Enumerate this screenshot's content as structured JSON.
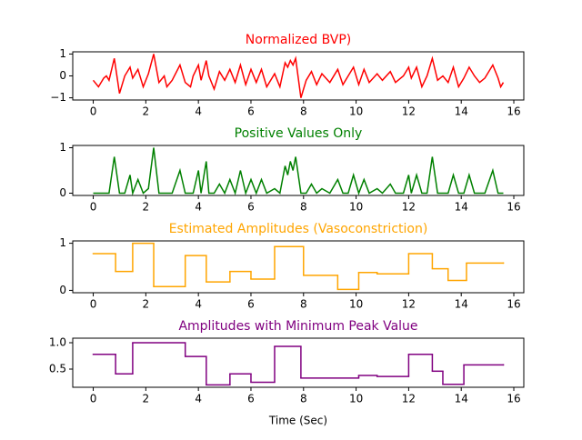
{
  "chart_data": [
    {
      "type": "line",
      "title": "Normalized BVP)",
      "color": "#ff0000",
      "x": [
        0,
        0.2,
        0.4,
        0.5,
        0.6,
        0.8,
        1.0,
        1.2,
        1.4,
        1.5,
        1.7,
        1.9,
        2.1,
        2.3,
        2.5,
        2.7,
        2.8,
        3.0,
        3.3,
        3.5,
        3.7,
        3.8,
        4.0,
        4.1,
        4.3,
        4.4,
        4.6,
        4.8,
        5.0,
        5.2,
        5.4,
        5.6,
        5.8,
        6.0,
        6.2,
        6.4,
        6.6,
        6.9,
        7.1,
        7.3,
        7.4,
        7.5,
        7.6,
        7.7,
        7.9,
        8.1,
        8.3,
        8.5,
        8.7,
        9.0,
        9.3,
        9.5,
        9.7,
        9.9,
        10.1,
        10.3,
        10.5,
        10.8,
        11.0,
        11.3,
        11.5,
        11.8,
        12.0,
        12.1,
        12.3,
        12.5,
        12.7,
        12.9,
        13.1,
        13.3,
        13.5,
        13.7,
        13.9,
        14.1,
        14.3,
        14.5,
        14.7,
        14.9,
        15.2,
        15.4,
        15.5,
        15.6
      ],
      "values": [
        -0.2,
        -0.5,
        -0.1,
        0.0,
        -0.2,
        0.8,
        -0.8,
        0.0,
        0.4,
        -0.1,
        0.3,
        -0.5,
        0.1,
        1.0,
        -0.3,
        0.0,
        -0.5,
        -0.2,
        0.5,
        -0.3,
        -0.5,
        0.0,
        0.5,
        -0.2,
        0.7,
        0.0,
        -0.6,
        0.2,
        -0.2,
        0.3,
        -0.3,
        0.5,
        -0.4,
        0.3,
        -0.3,
        0.3,
        -0.5,
        0.1,
        -0.5,
        0.6,
        0.4,
        0.7,
        0.5,
        0.8,
        -1.0,
        -0.2,
        0.2,
        -0.4,
        0.1,
        -0.3,
        0.3,
        -0.4,
        0.0,
        0.4,
        -0.4,
        0.3,
        -0.3,
        0.1,
        -0.2,
        0.2,
        -0.3,
        0.0,
        0.4,
        -0.1,
        0.4,
        -0.5,
        0.0,
        0.8,
        -0.2,
        0.0,
        -0.3,
        0.4,
        -0.5,
        -0.1,
        0.4,
        0.0,
        -0.3,
        -0.1,
        0.5,
        -0.1,
        -0.5,
        -0.3
      ],
      "xlim": [
        -0.78,
        16.38
      ],
      "xticks": [
        0,
        2,
        4,
        6,
        8,
        10,
        12,
        14,
        16
      ],
      "ylim": [
        -1.1,
        1.1
      ],
      "yticks": [
        {
          "value": -1,
          "label": "−1"
        },
        0,
        1
      ]
    },
    {
      "type": "line",
      "title": "Positive Values Only",
      "color": "#008000",
      "x": [
        0,
        0.2,
        0.4,
        0.5,
        0.6,
        0.8,
        1.0,
        1.2,
        1.4,
        1.5,
        1.7,
        1.9,
        2.1,
        2.3,
        2.5,
        2.7,
        2.8,
        3.0,
        3.3,
        3.5,
        3.7,
        3.8,
        4.0,
        4.1,
        4.3,
        4.4,
        4.6,
        4.8,
        5.0,
        5.2,
        5.4,
        5.6,
        5.8,
        6.0,
        6.2,
        6.4,
        6.6,
        6.9,
        7.1,
        7.3,
        7.4,
        7.5,
        7.6,
        7.7,
        7.9,
        8.1,
        8.3,
        8.5,
        8.7,
        9.0,
        9.3,
        9.5,
        9.7,
        9.9,
        10.1,
        10.3,
        10.5,
        10.8,
        11.0,
        11.3,
        11.5,
        11.8,
        12.0,
        12.1,
        12.3,
        12.5,
        12.7,
        12.9,
        13.1,
        13.3,
        13.5,
        13.7,
        13.9,
        14.1,
        14.3,
        14.5,
        14.7,
        14.9,
        15.2,
        15.4,
        15.5,
        15.6
      ],
      "values": [
        0,
        0,
        0,
        0,
        0,
        0.8,
        0,
        0,
        0.4,
        0,
        0.3,
        0,
        0.1,
        1.0,
        0,
        0,
        0,
        0,
        0.5,
        0,
        0,
        0,
        0.5,
        0,
        0.7,
        0,
        0,
        0.2,
        0,
        0.3,
        0,
        0.5,
        0,
        0.3,
        0,
        0.3,
        0,
        0.1,
        0,
        0.6,
        0.4,
        0.7,
        0.5,
        0.8,
        0,
        0,
        0.2,
        0,
        0.1,
        0,
        0.3,
        0,
        0,
        0.4,
        0,
        0.3,
        0,
        0.1,
        0,
        0.2,
        0,
        0,
        0.4,
        0,
        0.4,
        0,
        0,
        0.8,
        0,
        0,
        0,
        0.4,
        0,
        0,
        0.4,
        0,
        0,
        0,
        0.5,
        0,
        0,
        0
      ],
      "xlim": [
        -0.78,
        16.38
      ],
      "xticks": [
        0,
        2,
        4,
        6,
        8,
        10,
        12,
        14,
        16
      ],
      "ylim": [
        -0.05,
        1.05
      ],
      "yticks": [
        0,
        1
      ]
    },
    {
      "type": "step",
      "title": "Estimated Amplitudes (Vasoconstriction)",
      "color": "#ffa500",
      "x": [
        0,
        0.85,
        1.5,
        2.3,
        3.5,
        4.3,
        5.2,
        6.0,
        6.9,
        8.0,
        9.3,
        10.1,
        10.8,
        12.0,
        12.9,
        13.5,
        14.2,
        15.6
      ],
      "values": [
        0.78,
        0.4,
        1.0,
        0.08,
        0.74,
        0.18,
        0.4,
        0.24,
        0.93,
        0.32,
        0.02,
        0.38,
        0.35,
        0.78,
        0.46,
        0.21,
        0.58,
        0.58
      ],
      "xlim": [
        -0.78,
        16.38
      ],
      "xticks": [
        0,
        2,
        4,
        6,
        8,
        10,
        12,
        14,
        16
      ],
      "ylim": [
        -0.05,
        1.05
      ],
      "yticks": [
        0,
        1
      ]
    },
    {
      "type": "step",
      "title": "Amplitudes with Minimum Peak Value",
      "color": "#800080",
      "xlabel": "Time (Sec)",
      "x": [
        0,
        0.85,
        1.5,
        3.5,
        4.3,
        5.2,
        6.0,
        6.9,
        7.9,
        10.1,
        10.8,
        12.0,
        12.9,
        13.3,
        14.1,
        15.6
      ],
      "values": [
        0.78,
        0.41,
        1.0,
        0.74,
        0.2,
        0.41,
        0.25,
        0.93,
        0.33,
        0.38,
        0.36,
        0.78,
        0.46,
        0.21,
        0.58,
        0.58
      ],
      "xlim": [
        -0.78,
        16.38
      ],
      "xticks": [
        0,
        2,
        4,
        6,
        8,
        10,
        12,
        14,
        16
      ],
      "ylim": [
        0.155,
        1.086
      ],
      "yticks": [
        0.5,
        {
          "value": 1,
          "label": "1.0"
        }
      ]
    }
  ]
}
